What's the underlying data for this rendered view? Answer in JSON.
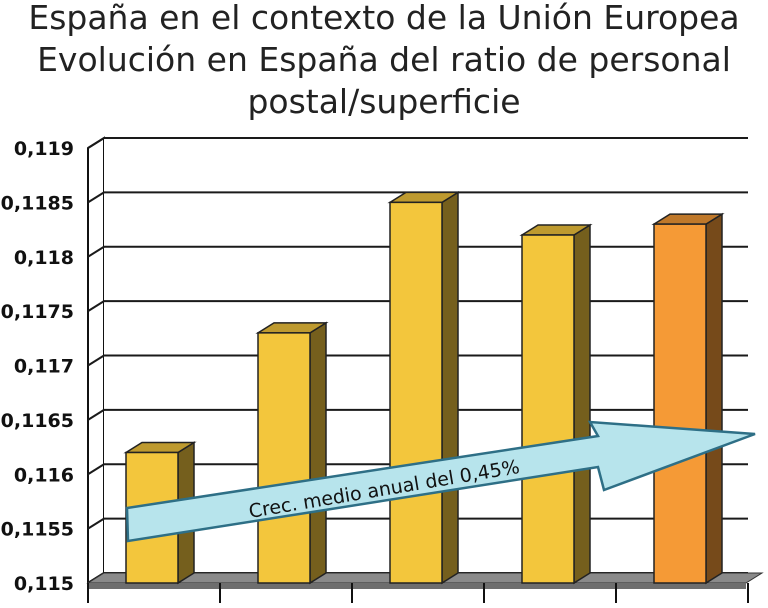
{
  "chart_data": {
    "type": "bar",
    "title": [
      "España en el contexto de la Unión Europea",
      "Evolución en España del ratio de personal",
      "postal/superficie"
    ],
    "xlabel": "",
    "ylabel": "",
    "categories": [
      "",
      "",
      "",
      "",
      ""
    ],
    "values": [
      0.1162,
      0.1173,
      0.1185,
      0.1182,
      0.1183
    ],
    "bar_colors": [
      "#f3c63c",
      "#f3c63c",
      "#f3c63c",
      "#f3c63c",
      "#f59a36"
    ],
    "ylim": [
      0.115,
      0.119
    ],
    "yticks": [
      "0,115",
      "0,1155",
      "0,116",
      "0,1165",
      "0,117",
      "0,1175",
      "0,118",
      "0,1185",
      "0,119"
    ],
    "grid": true,
    "annotation": "Crec. medio anual del 0,45%"
  }
}
